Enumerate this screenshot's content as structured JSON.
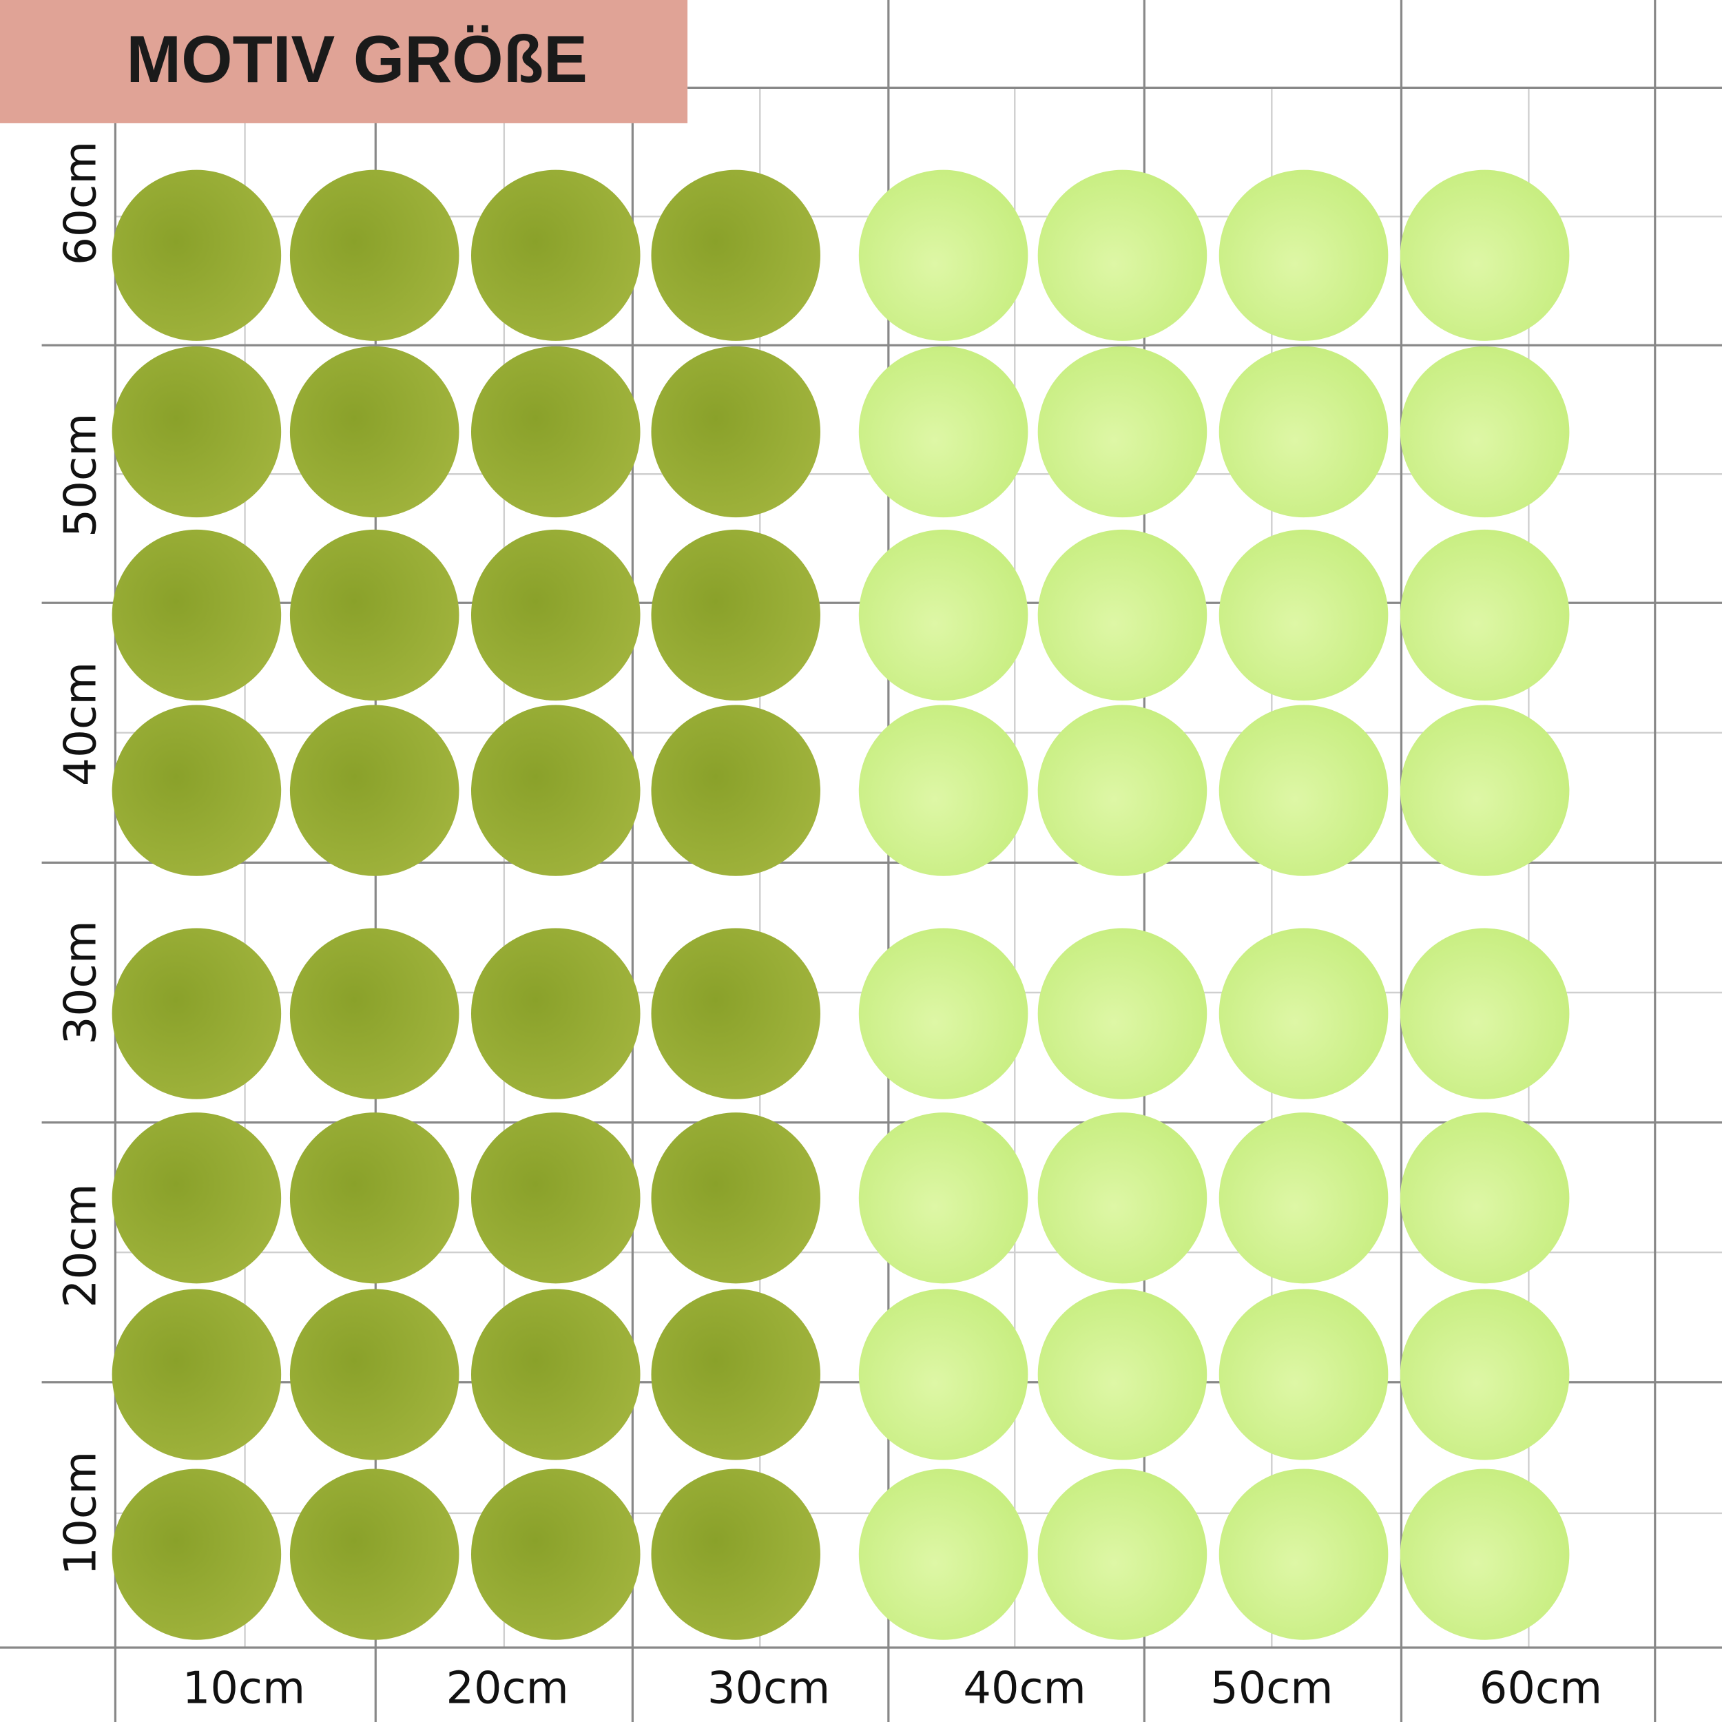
{
  "header": {
    "title": "MOTIV GRÖßE"
  },
  "x_labels": [
    "10cm",
    "20cm",
    "30cm",
    "40cm",
    "50cm",
    "60cm"
  ],
  "y_labels": [
    "60cm",
    "50cm",
    "40cm",
    "30cm",
    "20cm",
    "10cm"
  ]
}
